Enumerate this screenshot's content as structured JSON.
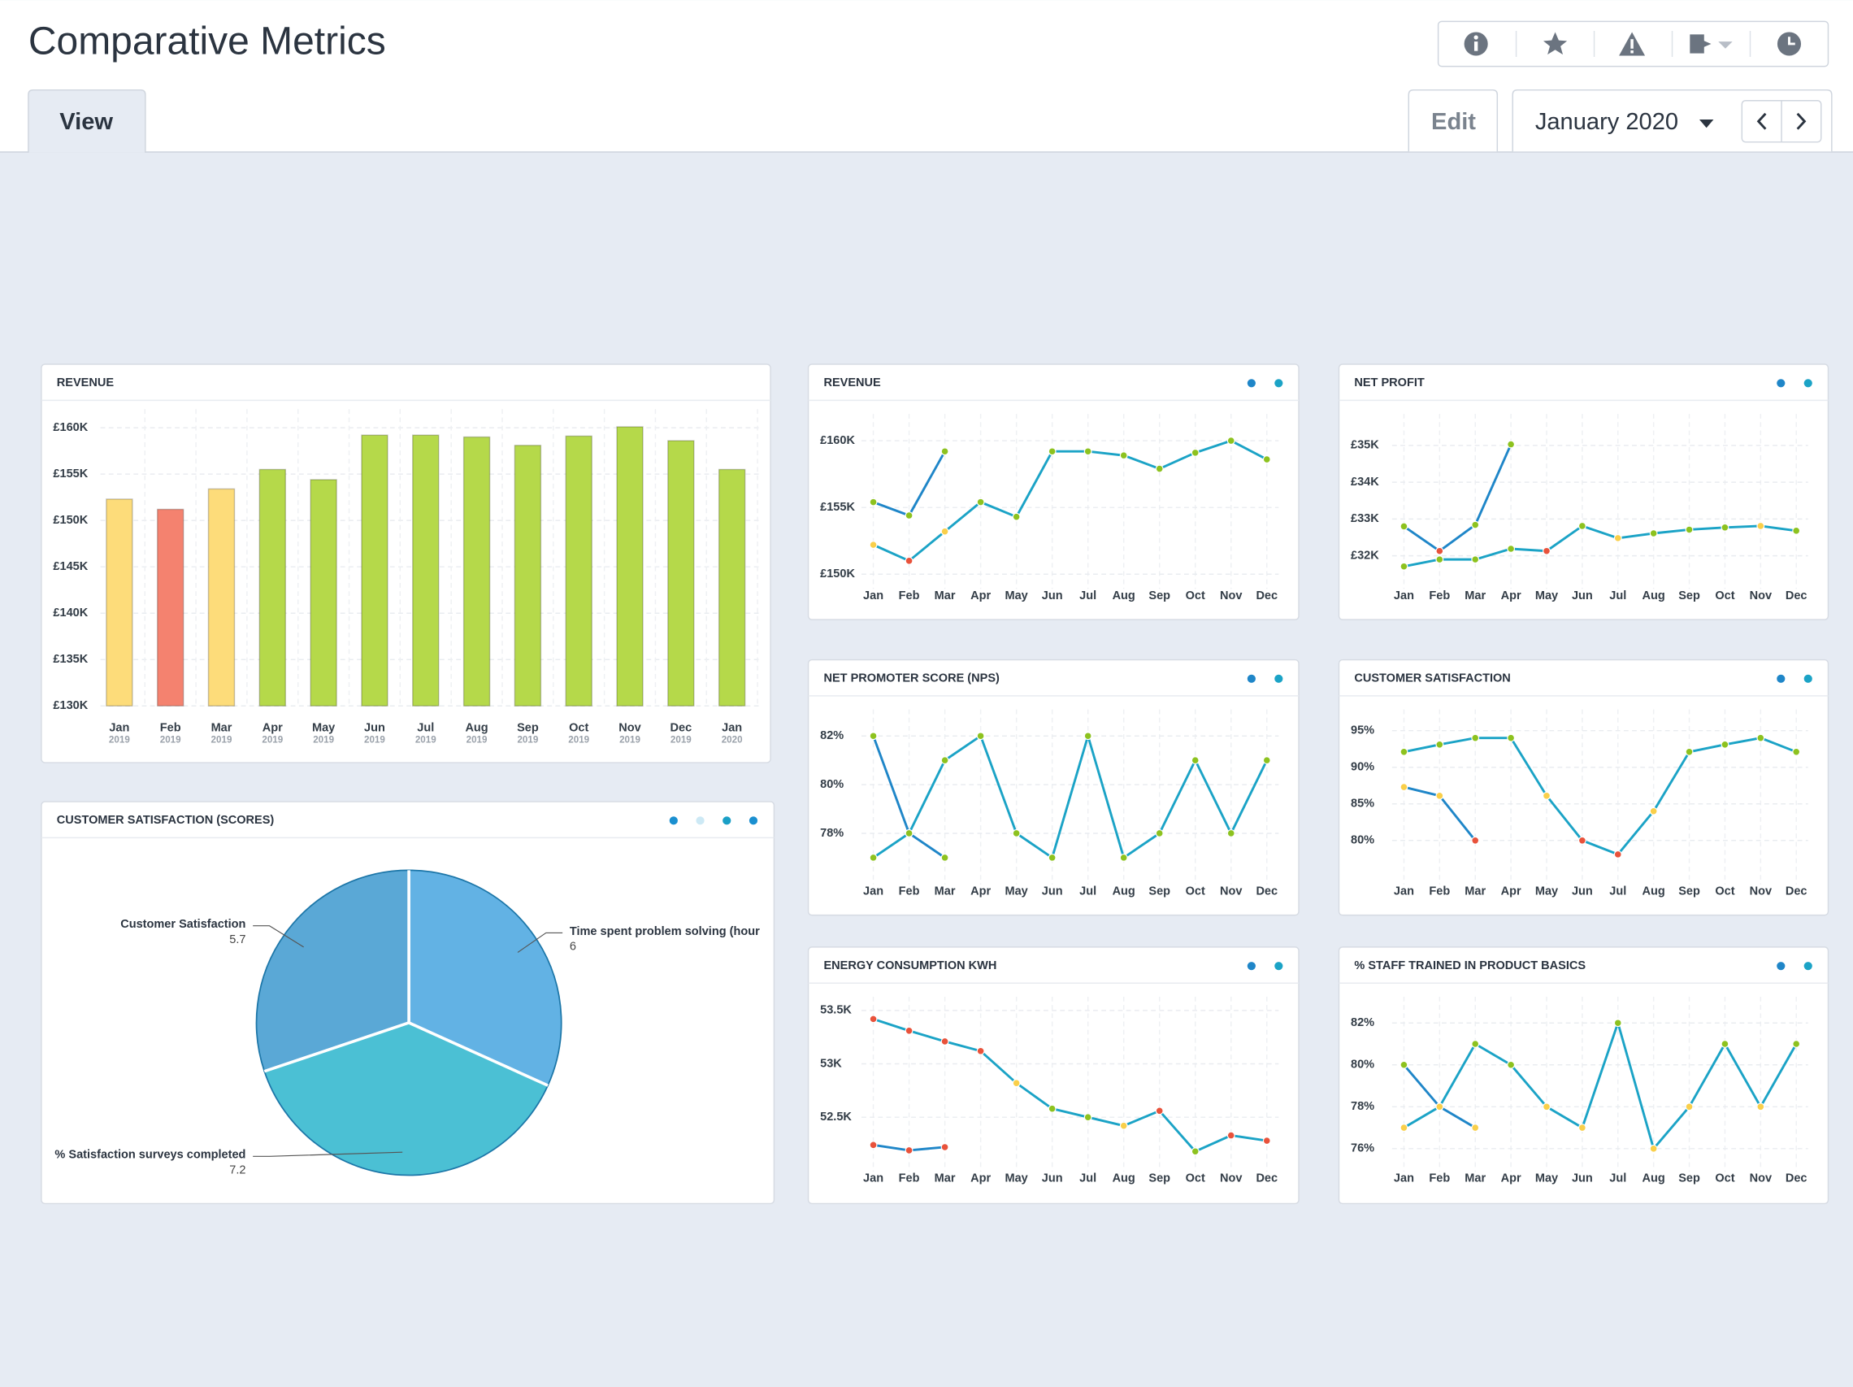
{
  "header": {
    "title": "Comparative Metrics",
    "tabs": [
      "View",
      "Edit"
    ],
    "period": "January 2020"
  },
  "chart_data": [
    {
      "type": "bar",
      "title": "REVENUE",
      "categories": [
        {
          "label": "Jan",
          "sub": "2019"
        },
        {
          "label": "Feb",
          "sub": "2019"
        },
        {
          "label": "Mar",
          "sub": "2019"
        },
        {
          "label": "Apr",
          "sub": "2019"
        },
        {
          "label": "May",
          "sub": "2019"
        },
        {
          "label": "Jun",
          "sub": "2019"
        },
        {
          "label": "Jul",
          "sub": "2019"
        },
        {
          "label": "Aug",
          "sub": "2019"
        },
        {
          "label": "Sep",
          "sub": "2019"
        },
        {
          "label": "Oct",
          "sub": "2019"
        },
        {
          "label": "Nov",
          "sub": "2019"
        },
        {
          "label": "Dec",
          "sub": "2019"
        },
        {
          "label": "Jan",
          "sub": "2020"
        }
      ],
      "values": [
        152300,
        151200,
        153400,
        155500,
        154400,
        159200,
        159200,
        159000,
        158100,
        159100,
        160100,
        158600,
        155500
      ],
      "colors": [
        "#fddc7a",
        "#f4826f",
        "#fddc7a",
        "#b5d94a",
        "#b5d94a",
        "#b5d94a",
        "#b5d94a",
        "#b5d94a",
        "#b5d94a",
        "#b5d94a",
        "#b5d94a",
        "#b5d94a",
        "#b5d94a"
      ],
      "ylim": [
        130000,
        162000
      ],
      "yticks": [
        {
          "value": 130000,
          "label": "£130K"
        },
        {
          "value": 135000,
          "label": "£135K"
        },
        {
          "value": 140000,
          "label": "£140K"
        },
        {
          "value": 145000,
          "label": "£145K"
        },
        {
          "value": 150000,
          "label": "£150K"
        },
        {
          "value": 155000,
          "label": "£155K"
        },
        {
          "value": 160000,
          "label": "£160K"
        }
      ],
      "grid": true
    },
    {
      "type": "line",
      "title": "REVENUE",
      "categories": [
        "Jan",
        "Feb",
        "Mar",
        "Apr",
        "May",
        "Jun",
        "Jul",
        "Aug",
        "Sep",
        "Oct",
        "Nov",
        "Dec"
      ],
      "series": [
        {
          "color": "#1f86c8",
          "values": [
            155400,
            154400,
            159200,
            null,
            null,
            null,
            null,
            null,
            null,
            null,
            null,
            null
          ],
          "point_colors": [
            "#8dc21f",
            "#8dc21f",
            "#8dc21f",
            null,
            null,
            null,
            null,
            null,
            null,
            null,
            null,
            null
          ]
        },
        {
          "color": "#1ba3c6",
          "values": [
            152200,
            151000,
            153200,
            155400,
            154300,
            159200,
            159200,
            158900,
            157900,
            159100,
            160000,
            158600
          ],
          "point_colors": [
            "#f9cf4a",
            "#e8523b",
            "#f9cf4a",
            "#8dc21f",
            "#8dc21f",
            "#8dc21f",
            "#8dc21f",
            "#8dc21f",
            "#8dc21f",
            "#8dc21f",
            "#8dc21f",
            "#8dc21f"
          ]
        }
      ],
      "ylim": [
        148900,
        161300
      ],
      "yticks": [
        {
          "value": 150000,
          "label": "£150K"
        },
        {
          "value": 155000,
          "label": "£155K"
        },
        {
          "value": 160000,
          "label": "£160K"
        }
      ],
      "grid": true
    },
    {
      "type": "line",
      "title": "NET PROFIT",
      "categories": [
        "Jan",
        "Feb",
        "Mar",
        "Apr",
        "May",
        "Jun",
        "Jul",
        "Aug",
        "Sep",
        "Oct",
        "Nov",
        "Dec"
      ],
      "series": [
        {
          "color": "#1f86c8",
          "values": [
            32800,
            32130,
            32840,
            35030,
            null,
            null,
            null,
            null,
            null,
            null,
            null,
            null
          ],
          "point_colors": [
            "#8dc21f",
            "#e8523b",
            "#8dc21f",
            "#8dc21f",
            null,
            null,
            null,
            null,
            null,
            null,
            null,
            null
          ]
        },
        {
          "color": "#1ba3c6",
          "values": [
            31710,
            31900,
            31900,
            32190,
            32130,
            32810,
            32480,
            32610,
            32710,
            32770,
            32810,
            32680
          ],
          "point_colors": [
            "#8dc21f",
            "#8dc21f",
            "#8dc21f",
            "#8dc21f",
            "#e8523b",
            "#8dc21f",
            "#f9cf4a",
            "#8dc21f",
            "#8dc21f",
            "#8dc21f",
            "#f9cf4a",
            "#8dc21f"
          ]
        }
      ],
      "ylim": [
        31100,
        35600
      ],
      "yticks": [
        {
          "value": 32000,
          "label": "£32K"
        },
        {
          "value": 33000,
          "label": "£33K"
        },
        {
          "value": 34000,
          "label": "£34K"
        },
        {
          "value": 35000,
          "label": "£35K"
        }
      ],
      "grid": true
    },
    {
      "type": "line",
      "title": "NET PROMOTER SCORE (NPS)",
      "categories": [
        "Jan",
        "Feb",
        "Mar",
        "Apr",
        "May",
        "Jun",
        "Jul",
        "Aug",
        "Sep",
        "Oct",
        "Nov",
        "Dec"
      ],
      "series": [
        {
          "color": "#1f86c8",
          "values": [
            82,
            78,
            77,
            null,
            null,
            null,
            null,
            null,
            null,
            null,
            null,
            null
          ],
          "point_colors": [
            "#8dc21f",
            "#8dc21f",
            "#8dc21f",
            null,
            null,
            null,
            null,
            null,
            null,
            null,
            null,
            null
          ]
        },
        {
          "color": "#1ba3c6",
          "values": [
            77,
            78,
            81,
            82,
            78,
            77,
            82,
            77,
            78,
            81,
            78,
            81
          ],
          "point_colors": [
            "#8dc21f",
            "#8dc21f",
            "#8dc21f",
            "#8dc21f",
            "#8dc21f",
            "#8dc21f",
            "#8dc21f",
            "#8dc21f",
            "#8dc21f",
            "#8dc21f",
            "#8dc21f",
            "#8dc21f"
          ]
        }
      ],
      "ylim": [
        75.9,
        82.7
      ],
      "yticks": [
        {
          "value": 78,
          "label": "78%"
        },
        {
          "value": 80,
          "label": "80%"
        },
        {
          "value": 82,
          "label": "82%"
        }
      ],
      "grid": true
    },
    {
      "type": "line",
      "title": "CUSTOMER SATISFACTION",
      "categories": [
        "Jan",
        "Feb",
        "Mar",
        "Apr",
        "May",
        "Jun",
        "Jul",
        "Aug",
        "Sep",
        "Oct",
        "Nov",
        "Dec"
      ],
      "series": [
        {
          "color": "#1f86c8",
          "values": [
            87.3,
            86.1,
            80,
            null,
            null,
            null,
            null,
            null,
            null,
            null,
            null,
            null
          ],
          "point_colors": [
            "#f9cf4a",
            "#f9cf4a",
            "#e8523b",
            null,
            null,
            null,
            null,
            null,
            null,
            null,
            null,
            null
          ]
        },
        {
          "color": "#1ba3c6",
          "values": [
            92.1,
            93.1,
            94,
            94,
            86.1,
            80,
            78.1,
            84,
            92.1,
            93.1,
            94,
            92.1
          ],
          "point_colors": [
            "#8dc21f",
            "#8dc21f",
            "#8dc21f",
            "#8dc21f",
            "#f9cf4a",
            "#e8523b",
            "#e8523b",
            "#f9cf4a",
            "#8dc21f",
            "#8dc21f",
            "#8dc21f",
            "#8dc21f"
          ]
        }
      ],
      "ylim": [
        74,
        96.6
      ],
      "yticks": [
        {
          "value": 80,
          "label": "80%"
        },
        {
          "value": 85,
          "label": "85%"
        },
        {
          "value": 90,
          "label": "90%"
        },
        {
          "value": 95,
          "label": "95%"
        }
      ],
      "grid": true
    },
    {
      "type": "pie",
      "title": "CUSTOMER SATISFACTION (SCORES)",
      "categories": [
        "Time spent problem solving (hour",
        "% Satisfaction surveys completed",
        "Customer Satisfaction"
      ],
      "values": [
        6,
        7.2,
        5.7
      ],
      "colors": [
        "#62b2e4",
        "#4bc0d4",
        "#5aa8d6"
      ]
    },
    {
      "type": "line",
      "title": "ENERGY CONSUMPTION KWH",
      "categories": [
        "Jan",
        "Feb",
        "Mar",
        "Apr",
        "May",
        "Jun",
        "Jul",
        "Aug",
        "Sep",
        "Oct",
        "Nov",
        "Dec"
      ],
      "series": [
        {
          "color": "#1f86c8",
          "values": [
            52240,
            52190,
            52220,
            null,
            null,
            null,
            null,
            null,
            null,
            null,
            null,
            null
          ],
          "point_colors": [
            "#e8523b",
            "#e8523b",
            "#e8523b",
            null,
            null,
            null,
            null,
            null,
            null,
            null,
            null,
            null
          ]
        },
        {
          "color": "#1ba3c6",
          "values": [
            53420,
            53310,
            53210,
            53120,
            52820,
            52580,
            52500,
            52420,
            52560,
            52180,
            52330,
            52280
          ],
          "point_colors": [
            "#e8523b",
            "#e8523b",
            "#e8523b",
            "#e8523b",
            "#f9cf4a",
            "#8dc21f",
            "#8dc21f",
            "#f9cf4a",
            "#e8523b",
            "#8dc21f",
            "#e8523b",
            "#e8523b"
          ]
        }
      ],
      "ylim": [
        51990,
        53540
      ],
      "yticks": [
        {
          "value": 52500,
          "label": "52.5K"
        },
        {
          "value": 53000,
          "label": "53K"
        },
        {
          "value": 53500,
          "label": "53.5K"
        }
      ],
      "grid": true
    },
    {
      "type": "line",
      "title": "% STAFF TRAINED IN PRODUCT BASICS",
      "categories": [
        "Jan",
        "Feb",
        "Mar",
        "Apr",
        "May",
        "Jun",
        "Jul",
        "Aug",
        "Sep",
        "Oct",
        "Nov",
        "Dec"
      ],
      "series": [
        {
          "color": "#1f86c8",
          "values": [
            80,
            78,
            77,
            null,
            null,
            null,
            null,
            null,
            null,
            null,
            null,
            null
          ],
          "point_colors": [
            "#8dc21f",
            "#f9cf4a",
            "#f9cf4a",
            null,
            null,
            null,
            null,
            null,
            null,
            null,
            null,
            null
          ]
        },
        {
          "color": "#1ba3c6",
          "values": [
            77,
            78,
            81,
            80,
            78,
            77,
            82,
            76,
            78,
            81,
            78,
            81
          ],
          "point_colors": [
            "#f9cf4a",
            "#f9cf4a",
            "#8dc21f",
            "#8dc21f",
            "#f9cf4a",
            "#f9cf4a",
            "#8dc21f",
            "#f9cf4a",
            "#f9cf4a",
            "#8dc21f",
            "#f9cf4a",
            "#8dc21f"
          ]
        }
      ],
      "ylim": [
        74.9,
        82.8
      ],
      "yticks": [
        {
          "value": 76,
          "label": "76%"
        },
        {
          "value": 78,
          "label": "78%"
        },
        {
          "value": 80,
          "label": "80%"
        },
        {
          "value": 82,
          "label": "82%"
        }
      ],
      "grid": true
    }
  ]
}
